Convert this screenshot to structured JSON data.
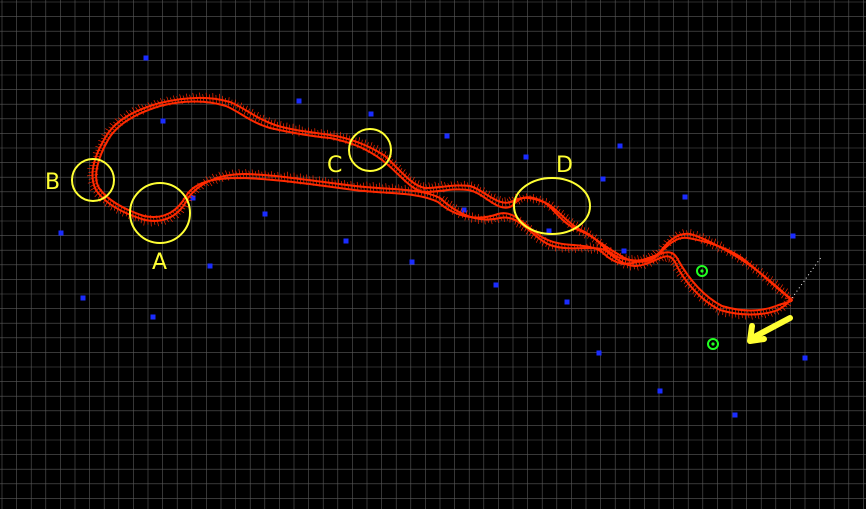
{
  "colors": {
    "background": "#000000",
    "grid": "#5a5a5a",
    "trajectory": "#ff2a00",
    "landmark": "#1a2cff",
    "annotation": "#ffff33",
    "marker": "#22ff22",
    "ray": "#ffffff"
  },
  "annotations": {
    "A": "A",
    "B": "B",
    "C": "C",
    "D": "D"
  },
  "icons": {
    "direction": "arrow-icon",
    "markers": "green-ring-icon"
  }
}
